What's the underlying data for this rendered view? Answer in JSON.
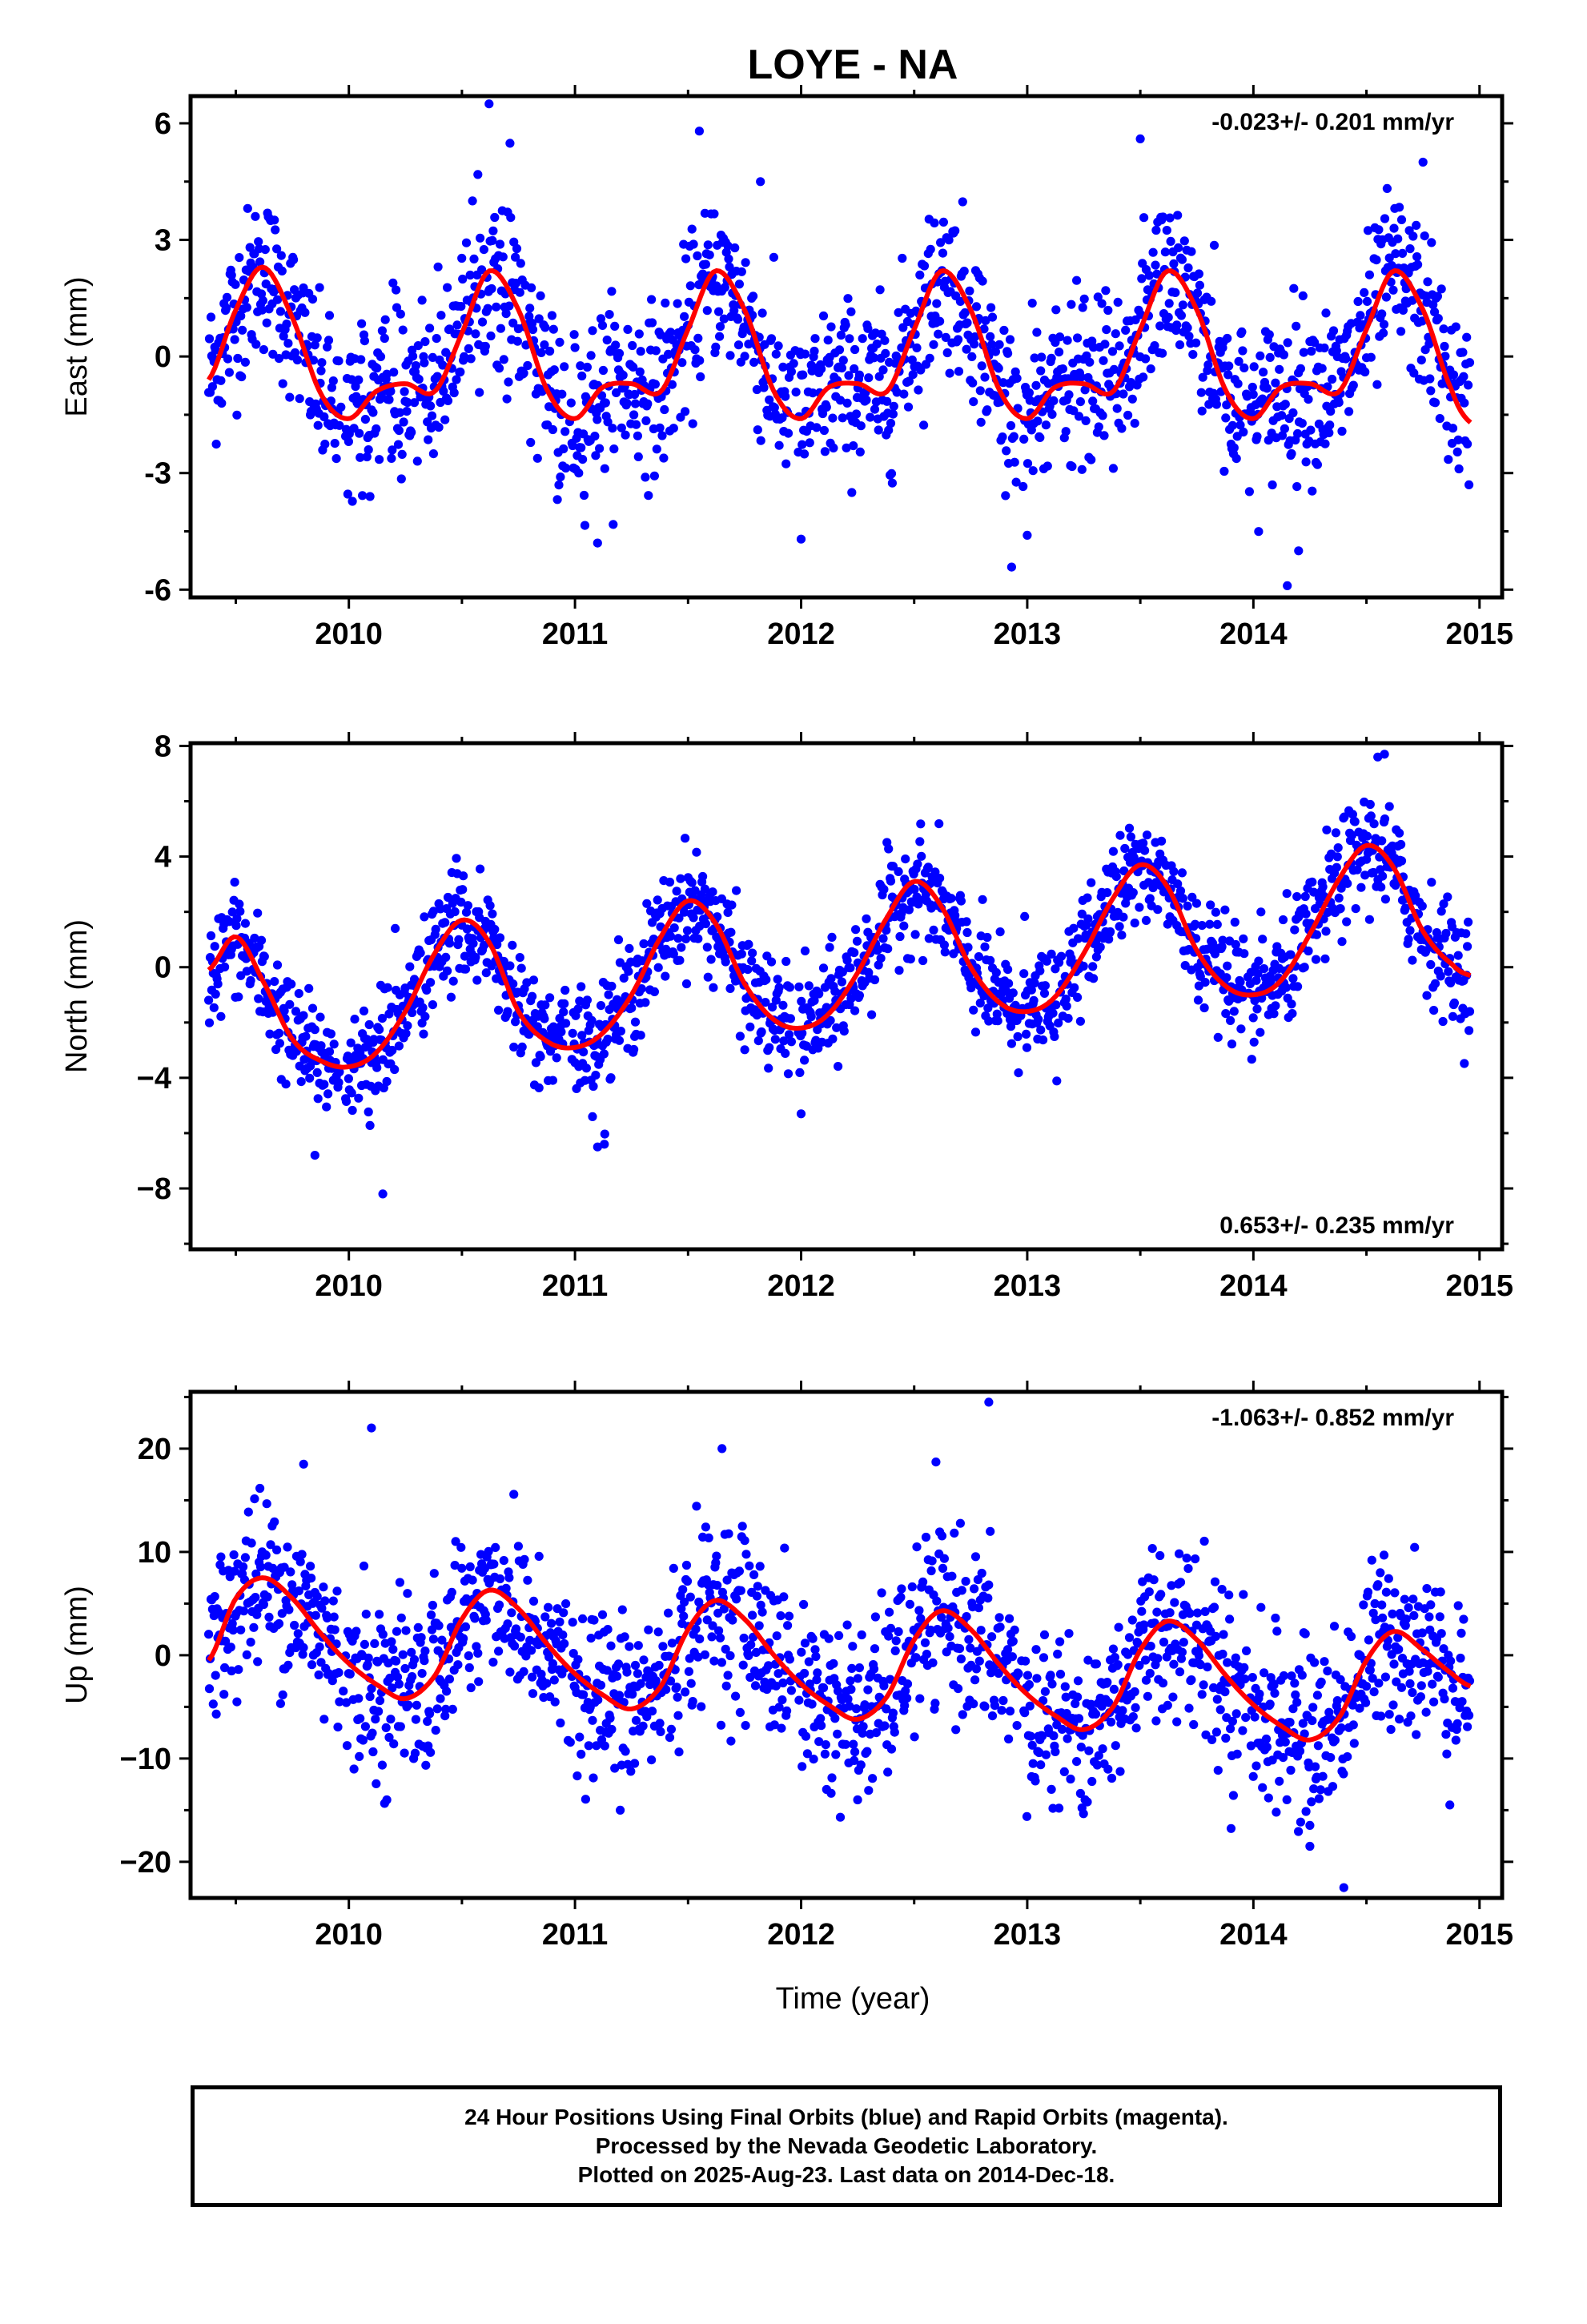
{
  "title": "LOYE - NA",
  "xlabel": "Time (year)",
  "colors": {
    "points": "#0000ff",
    "fit": "#ff0000",
    "frame": "#000000"
  },
  "caption": {
    "line1": "24 Hour Positions Using Final Orbits (blue) and Rapid Orbits (magenta).",
    "line2": "Processed by the Nevada Geodetic Laboratory.",
    "line3": "Plotted on 2025-Aug-23. Last data on 2014-Dec-18."
  },
  "chart_data": [
    {
      "type": "scatter",
      "panel": "east",
      "ylabel": "East (mm)",
      "rate_label": "-0.023+/- 0.201 mm/yr",
      "rate_position": "top-right",
      "xlim": [
        2009.3,
        2015.1
      ],
      "ylim": [
        -6.2,
        6.7
      ],
      "xticks": [
        2010,
        2011,
        2012,
        2013,
        2014,
        2015
      ],
      "yticks": [
        -6,
        -3,
        0,
        3,
        6
      ],
      "ytick_labels": [
        "-6",
        "-3",
        "0",
        "3",
        "6"
      ],
      "data_start": 2009.38,
      "data_end": 2014.96,
      "fit_series": {
        "x": [
          2009.38,
          2009.5,
          2009.62,
          2009.75,
          2009.88,
          2010.0,
          2010.12,
          2010.25,
          2010.38,
          2010.5,
          2010.62,
          2010.75,
          2010.88,
          2011.0,
          2011.12,
          2011.25,
          2011.38,
          2011.5,
          2011.62,
          2011.75,
          2011.88,
          2012.0,
          2012.12,
          2012.25,
          2012.38,
          2012.5,
          2012.62,
          2012.75,
          2012.88,
          2013.0,
          2013.12,
          2013.25,
          2013.38,
          2013.5,
          2013.62,
          2013.75,
          2013.88,
          2014.0,
          2014.12,
          2014.25,
          2014.38,
          2014.5,
          2014.62,
          2014.75,
          2014.88,
          2014.96
        ],
        "y": [
          -0.6,
          1.2,
          2.3,
          1.0,
          -1.0,
          -1.6,
          -0.9,
          -0.7,
          -0.9,
          0.6,
          2.2,
          1.2,
          -0.9,
          -1.6,
          -0.8,
          -0.7,
          -0.9,
          0.7,
          2.2,
          1.2,
          -0.9,
          -1.6,
          -0.8,
          -0.7,
          -0.9,
          0.7,
          2.2,
          1.2,
          -0.9,
          -1.6,
          -0.8,
          -0.7,
          -0.9,
          0.7,
          2.2,
          1.2,
          -0.9,
          -1.6,
          -0.8,
          -0.7,
          -0.9,
          0.7,
          2.2,
          1.2,
          -0.9,
          -1.7
        ]
      },
      "scatter_noise_sd": 1.05,
      "outliers": {
        "x": [
          2010.62,
          2011.55,
          2011.82,
          2013.5,
          2014.75,
          2011.1,
          2012.0,
          2013.0,
          2014.15,
          2014.2
        ],
        "y": [
          6.5,
          5.8,
          4.5,
          5.6,
          5.0,
          -4.8,
          -4.7,
          -4.6,
          -5.9,
          -5.0
        ]
      }
    },
    {
      "type": "scatter",
      "panel": "north",
      "ylabel": "North (mm)",
      "rate_label": "0.653+/- 0.235 mm/yr",
      "rate_position": "bottom-right",
      "xlim": [
        2009.3,
        2015.1
      ],
      "ylim": [
        -10.2,
        8.1
      ],
      "xticks": [
        2010,
        2011,
        2012,
        2013,
        2014,
        2015
      ],
      "yticks": [
        -8,
        -4,
        0,
        4,
        8
      ],
      "ytick_labels": [
        "−8",
        "−4",
        "0",
        "4",
        "8"
      ],
      "data_start": 2009.38,
      "data_end": 2014.96,
      "fit_series": {
        "x": [
          2009.38,
          2009.5,
          2009.62,
          2009.75,
          2009.88,
          2010.0,
          2010.12,
          2010.25,
          2010.38,
          2010.5,
          2010.62,
          2010.75,
          2010.88,
          2011.0,
          2011.12,
          2011.25,
          2011.38,
          2011.5,
          2011.62,
          2011.75,
          2011.88,
          2012.0,
          2012.12,
          2012.25,
          2012.38,
          2012.5,
          2012.62,
          2012.75,
          2012.88,
          2013.0,
          2013.12,
          2013.25,
          2013.38,
          2013.5,
          2013.62,
          2013.75,
          2013.88,
          2014.0,
          2014.12,
          2014.25,
          2014.38,
          2014.5,
          2014.62,
          2014.75,
          2014.88,
          2014.96
        ],
        "y": [
          -0.1,
          1.1,
          -0.5,
          -2.6,
          -3.4,
          -3.6,
          -3.1,
          -1.6,
          0.5,
          1.7,
          0.9,
          -1.6,
          -2.7,
          -2.9,
          -2.4,
          -1.0,
          1.1,
          2.4,
          1.6,
          -0.6,
          -1.9,
          -2.2,
          -1.7,
          -0.2,
          1.8,
          3.1,
          2.2,
          0.0,
          -1.3,
          -1.6,
          -1.1,
          0.5,
          2.5,
          3.7,
          2.9,
          0.6,
          -0.7,
          -1.0,
          -0.5,
          1.2,
          3.2,
          4.4,
          3.6,
          1.3,
          0.1,
          -0.3
        ]
      },
      "scatter_noise_sd": 1.0,
      "outliers": {
        "x": [
          2014.55,
          2014.58,
          2010.15,
          2011.1,
          2011.13,
          2009.85,
          2012.0
        ],
        "y": [
          7.6,
          7.7,
          -8.2,
          -6.5,
          -6.4,
          -6.8,
          -5.3
        ]
      }
    },
    {
      "type": "scatter",
      "panel": "up",
      "ylabel": "Up (mm)",
      "rate_label": "-1.063+/- 0.852 mm/yr",
      "rate_position": "top-right",
      "xlim": [
        2009.3,
        2015.1
      ],
      "ylim": [
        -23.5,
        25.5
      ],
      "xticks": [
        2010,
        2011,
        2012,
        2013,
        2014,
        2015
      ],
      "yticks": [
        -20,
        -10,
        0,
        10,
        20
      ],
      "ytick_labels": [
        "−20",
        "−10",
        "0",
        "10",
        "20"
      ],
      "data_start": 2009.38,
      "data_end": 2014.96,
      "fit_series": {
        "x": [
          2009.38,
          2009.5,
          2009.62,
          2009.75,
          2009.88,
          2010.0,
          2010.12,
          2010.25,
          2010.38,
          2010.5,
          2010.62,
          2010.75,
          2010.88,
          2011.0,
          2011.12,
          2011.25,
          2011.38,
          2011.5,
          2011.62,
          2011.75,
          2011.88,
          2012.0,
          2012.12,
          2012.25,
          2012.38,
          2012.5,
          2012.62,
          2012.75,
          2012.88,
          2013.0,
          2013.12,
          2013.25,
          2013.38,
          2013.5,
          2013.62,
          2013.75,
          2013.88,
          2014.0,
          2014.12,
          2014.25,
          2014.38,
          2014.5,
          2014.62,
          2014.75,
          2014.88,
          2014.96
        ],
        "y": [
          -0.5,
          5.5,
          7.5,
          5.5,
          2.0,
          -0.8,
          -2.8,
          -4.2,
          -2.0,
          3.5,
          6.3,
          4.5,
          1.0,
          -1.8,
          -3.8,
          -5.2,
          -3.0,
          2.5,
          5.3,
          3.5,
          0.0,
          -2.8,
          -4.8,
          -6.2,
          -4.0,
          1.5,
          4.3,
          2.5,
          -1.0,
          -3.8,
          -5.8,
          -7.2,
          -5.0,
          0.5,
          3.3,
          1.5,
          -2.0,
          -4.8,
          -6.8,
          -8.2,
          -6.0,
          -0.5,
          2.3,
          0.5,
          -1.8,
          -3.0
        ]
      },
      "scatter_noise_sd": 4.2,
      "outliers": {
        "x": [
          2010.1,
          2012.83,
          2014.4,
          2009.8,
          2011.65,
          2014.25,
          2011.2,
          2012.25
        ],
        "y": [
          22.0,
          24.5,
          -22.5,
          18.5,
          20.0,
          -18.5,
          -15.0,
          -14.0
        ]
      }
    }
  ]
}
